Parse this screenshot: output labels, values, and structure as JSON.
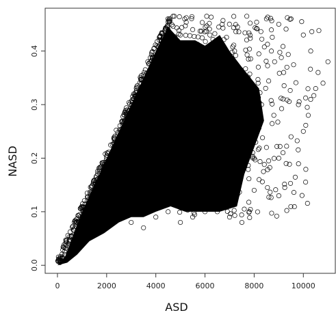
{
  "chart_data": {
    "type": "scatter",
    "title": "",
    "xlabel": "ASD",
    "ylabel": "NASD",
    "xlim": [
      -500,
      11300
    ],
    "ylim": [
      -0.015,
      0.48
    ],
    "xticks": [
      0,
      2000,
      4000,
      6000,
      8000,
      10000
    ],
    "xtick_labels": [
      "0",
      "2000",
      "4000",
      "6000",
      "8000",
      "10000"
    ],
    "yticks": [
      0.0,
      0.1,
      0.2,
      0.3,
      0.4
    ],
    "ytick_labels": [
      "0.0",
      "0.1",
      "0.2",
      "0.3",
      "0.4"
    ],
    "grid": false,
    "legend": "none",
    "marker": "open-circle",
    "marker_color": "#000000",
    "point_density_note": "dense cloud bounded by upper line y = x/10000 up to ASD≈4500, NASD≈0.45; sparse outliers out to ASD≈11000",
    "series": [
      {
        "points": [
          [
            100,
            0.005
          ],
          [
            200,
            0.012
          ],
          [
            300,
            0.02
          ],
          [
            500,
            0.035
          ],
          [
            700,
            0.05
          ],
          [
            900,
            0.07
          ],
          [
            1200,
            0.1
          ],
          [
            1500,
            0.13
          ],
          [
            1800,
            0.16
          ],
          [
            2200,
            0.2
          ],
          [
            2600,
            0.24
          ],
          [
            3000,
            0.28
          ],
          [
            3400,
            0.32
          ],
          [
            3800,
            0.36
          ],
          [
            4200,
            0.4
          ],
          [
            4500,
            0.44
          ],
          [
            4700,
            0.465
          ],
          [
            4750,
            0.465
          ],
          [
            1000,
            0.05
          ],
          [
            1500,
            0.07
          ],
          [
            2000,
            0.08
          ],
          [
            2500,
            0.09
          ],
          [
            3000,
            0.08
          ],
          [
            3500,
            0.07
          ],
          [
            4000,
            0.09
          ],
          [
            4500,
            0.1
          ],
          [
            5000,
            0.08
          ],
          [
            5500,
            0.09
          ],
          [
            6000,
            0.1
          ],
          [
            6500,
            0.1
          ],
          [
            7000,
            0.09
          ],
          [
            7500,
            0.08
          ],
          [
            7800,
            0.1
          ],
          [
            8000,
            0.14
          ],
          [
            8200,
            0.16
          ],
          [
            8000,
            0.2
          ],
          [
            8500,
            0.22
          ],
          [
            9000,
            0.2
          ],
          [
            9300,
            0.19
          ],
          [
            9500,
            0.24
          ],
          [
            10000,
            0.25
          ],
          [
            10200,
            0.28
          ],
          [
            10500,
            0.33
          ],
          [
            10800,
            0.34
          ],
          [
            11000,
            0.38
          ],
          [
            10000,
            0.43
          ],
          [
            9500,
            0.46
          ],
          [
            9000,
            0.45
          ],
          [
            8500,
            0.46
          ],
          [
            7700,
            0.465
          ],
          [
            6700,
            0.45
          ],
          [
            6200,
            0.43
          ],
          [
            5500,
            0.44
          ],
          [
            5000,
            0.43
          ],
          [
            8700,
            0.4
          ],
          [
            9200,
            0.36
          ],
          [
            9800,
            0.3
          ],
          [
            10300,
            0.4
          ],
          [
            10600,
            0.36
          ],
          [
            6500,
            0.38
          ],
          [
            7200,
            0.35
          ],
          [
            7800,
            0.32
          ],
          [
            8300,
            0.3
          ],
          [
            8800,
            0.28
          ],
          [
            7000,
            0.25
          ],
          [
            7500,
            0.2
          ]
        ]
      }
    ]
  }
}
